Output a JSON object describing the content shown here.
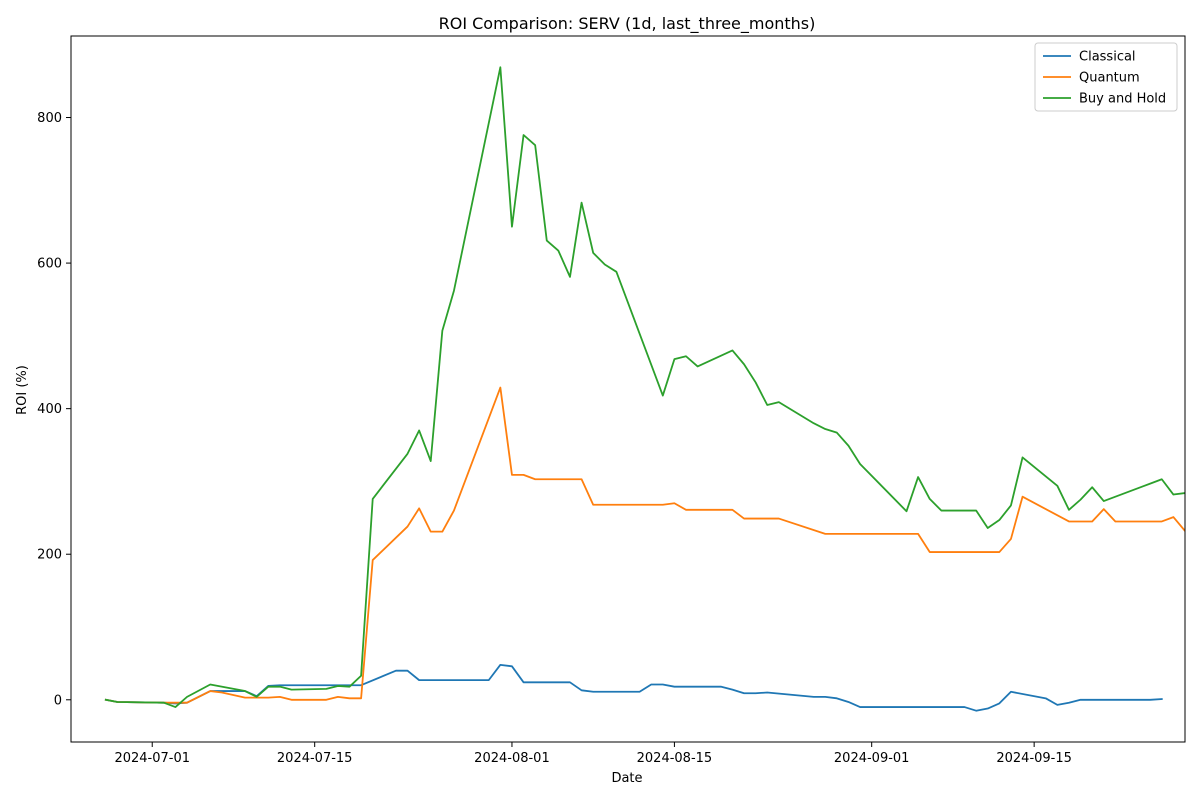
{
  "chart_data": {
    "type": "line",
    "title": "ROI Comparison: SERV (1d, last_three_months)",
    "xlabel": "Date",
    "ylabel": "ROI (%)",
    "x_tick_labels": [
      "2024-07-01",
      "2024-07-15",
      "2024-08-01",
      "2024-08-15",
      "2024-09-01",
      "2024-09-15"
    ],
    "y_tick_labels": [
      "0",
      "200",
      "400",
      "600",
      "800"
    ],
    "y_ticks": [
      0,
      200,
      400,
      600,
      800
    ],
    "xlim": [
      "2024-06-24",
      "2024-09-28"
    ],
    "ylim": [
      -58,
      912
    ],
    "grid": false,
    "legend_position": "top-right",
    "series": [
      {
        "name": "Classical",
        "color": "#1f77b4",
        "points": [
          [
            "2024-06-27",
            0
          ],
          [
            "2024-06-28",
            -3
          ],
          [
            "2024-07-02",
            -4
          ],
          [
            "2024-07-03",
            -5
          ],
          [
            "2024-07-04",
            -4
          ],
          [
            "2024-07-06",
            12
          ],
          [
            "2024-07-09",
            12
          ],
          [
            "2024-07-10",
            5
          ],
          [
            "2024-07-11",
            19
          ],
          [
            "2024-07-12",
            20
          ],
          [
            "2024-07-16",
            20
          ],
          [
            "2024-07-18",
            20
          ],
          [
            "2024-07-19",
            20
          ],
          [
            "2024-07-22",
            40
          ],
          [
            "2024-07-23",
            40
          ],
          [
            "2024-07-24",
            27
          ],
          [
            "2024-07-25",
            27
          ],
          [
            "2024-07-30",
            27
          ],
          [
            "2024-07-31",
            48
          ],
          [
            "2024-08-01",
            46
          ],
          [
            "2024-08-02",
            24
          ],
          [
            "2024-08-06",
            24
          ],
          [
            "2024-08-07",
            13
          ],
          [
            "2024-08-08",
            11
          ],
          [
            "2024-08-12",
            11
          ],
          [
            "2024-08-13",
            21
          ],
          [
            "2024-08-14",
            21
          ],
          [
            "2024-08-15",
            18
          ],
          [
            "2024-08-19",
            18
          ],
          [
            "2024-08-20",
            14
          ],
          [
            "2024-08-21",
            9
          ],
          [
            "2024-08-22",
            9
          ],
          [
            "2024-08-23",
            10
          ],
          [
            "2024-08-27",
            4
          ],
          [
            "2024-08-28",
            4
          ],
          [
            "2024-08-29",
            2
          ],
          [
            "2024-08-30",
            -3
          ],
          [
            "2024-08-31",
            -10
          ],
          [
            "2024-09-09",
            -10
          ],
          [
            "2024-09-10",
            -15
          ],
          [
            "2024-09-11",
            -12
          ],
          [
            "2024-09-12",
            -5
          ],
          [
            "2024-09-13",
            11
          ],
          [
            "2024-09-16",
            2
          ],
          [
            "2024-09-17",
            -7
          ],
          [
            "2024-09-18",
            -4
          ],
          [
            "2024-09-19",
            0
          ],
          [
            "2024-09-25",
            0
          ],
          [
            "2024-09-26",
            1
          ]
        ]
      },
      {
        "name": "Quantum",
        "color": "#ff7f0e",
        "points": [
          [
            "2024-06-27",
            0
          ],
          [
            "2024-06-28",
            -3
          ],
          [
            "2024-07-02",
            -4
          ],
          [
            "2024-07-03",
            -4
          ],
          [
            "2024-07-04",
            -4
          ],
          [
            "2024-07-06",
            12
          ],
          [
            "2024-07-07",
            10
          ],
          [
            "2024-07-09",
            3
          ],
          [
            "2024-07-10",
            3
          ],
          [
            "2024-07-11",
            3
          ],
          [
            "2024-07-12",
            4
          ],
          [
            "2024-07-13",
            0
          ],
          [
            "2024-07-16",
            0
          ],
          [
            "2024-07-17",
            4
          ],
          [
            "2024-07-18",
            2
          ],
          [
            "2024-07-19",
            2
          ],
          [
            "2024-07-20",
            192
          ],
          [
            "2024-07-23",
            238
          ],
          [
            "2024-07-24",
            263
          ],
          [
            "2024-07-25",
            231
          ],
          [
            "2024-07-26",
            231
          ],
          [
            "2024-07-27",
            260
          ],
          [
            "2024-07-31",
            429
          ],
          [
            "2024-08-01",
            309
          ],
          [
            "2024-08-02",
            309
          ],
          [
            "2024-08-03",
            303
          ],
          [
            "2024-08-07",
            303
          ],
          [
            "2024-08-08",
            268
          ],
          [
            "2024-08-14",
            268
          ],
          [
            "2024-08-15",
            270
          ],
          [
            "2024-08-16",
            261
          ],
          [
            "2024-08-20",
            261
          ],
          [
            "2024-08-21",
            249
          ],
          [
            "2024-08-24",
            249
          ],
          [
            "2024-08-28",
            228
          ],
          [
            "2024-09-04",
            228
          ],
          [
            "2024-09-05",
            228
          ],
          [
            "2024-09-06",
            203
          ],
          [
            "2024-09-12",
            203
          ],
          [
            "2024-09-13",
            221
          ],
          [
            "2024-09-14",
            279
          ],
          [
            "2024-09-18",
            245
          ],
          [
            "2024-09-20",
            245
          ],
          [
            "2024-09-21",
            262
          ],
          [
            "2024-09-22",
            245
          ],
          [
            "2024-09-26",
            245
          ],
          [
            "2024-09-27",
            251
          ],
          [
            "2024-09-28",
            232
          ],
          [
            "2024-09-29",
            232
          ]
        ]
      },
      {
        "name": "Buy and Hold",
        "color": "#2ca02c",
        "points": [
          [
            "2024-06-27",
            0
          ],
          [
            "2024-06-28",
            -3
          ],
          [
            "2024-07-02",
            -4
          ],
          [
            "2024-07-03",
            -10
          ],
          [
            "2024-07-04",
            4
          ],
          [
            "2024-07-06",
            21
          ],
          [
            "2024-07-09",
            12
          ],
          [
            "2024-07-10",
            4
          ],
          [
            "2024-07-11",
            18
          ],
          [
            "2024-07-12",
            18
          ],
          [
            "2024-07-13",
            14
          ],
          [
            "2024-07-16",
            15
          ],
          [
            "2024-07-17",
            19
          ],
          [
            "2024-07-18",
            18
          ],
          [
            "2024-07-19",
            33
          ],
          [
            "2024-07-20",
            276
          ],
          [
            "2024-07-23",
            338
          ],
          [
            "2024-07-24",
            370
          ],
          [
            "2024-07-25",
            328
          ],
          [
            "2024-07-26",
            507
          ],
          [
            "2024-07-27",
            562
          ],
          [
            "2024-07-31",
            869
          ],
          [
            "2024-08-01",
            650
          ],
          [
            "2024-08-02",
            776
          ],
          [
            "2024-08-03",
            762
          ],
          [
            "2024-08-04",
            631
          ],
          [
            "2024-08-05",
            617
          ],
          [
            "2024-08-06",
            581
          ],
          [
            "2024-08-07",
            683
          ],
          [
            "2024-08-08",
            614
          ],
          [
            "2024-08-09",
            598
          ],
          [
            "2024-08-10",
            588
          ],
          [
            "2024-08-14",
            418
          ],
          [
            "2024-08-15",
            468
          ],
          [
            "2024-08-16",
            472
          ],
          [
            "2024-08-17",
            458
          ],
          [
            "2024-08-20",
            480
          ],
          [
            "2024-08-21",
            461
          ],
          [
            "2024-08-22",
            436
          ],
          [
            "2024-08-23",
            405
          ],
          [
            "2024-08-24",
            409
          ],
          [
            "2024-08-27",
            380
          ],
          [
            "2024-08-28",
            372
          ],
          [
            "2024-08-29",
            367
          ],
          [
            "2024-08-30",
            349
          ],
          [
            "2024-08-31",
            324
          ],
          [
            "2024-09-04",
            259
          ],
          [
            "2024-09-05",
            306
          ],
          [
            "2024-09-06",
            276
          ],
          [
            "2024-09-07",
            260
          ],
          [
            "2024-09-10",
            260
          ],
          [
            "2024-09-11",
            236
          ],
          [
            "2024-09-12",
            247
          ],
          [
            "2024-09-13",
            267
          ],
          [
            "2024-09-14",
            333
          ],
          [
            "2024-09-17",
            294
          ],
          [
            "2024-09-18",
            261
          ],
          [
            "2024-09-19",
            275
          ],
          [
            "2024-09-20",
            292
          ],
          [
            "2024-09-21",
            273
          ],
          [
            "2024-09-25",
            297
          ],
          [
            "2024-09-26",
            303
          ],
          [
            "2024-09-27",
            282
          ],
          [
            "2024-09-28",
            284
          ]
        ]
      }
    ]
  }
}
